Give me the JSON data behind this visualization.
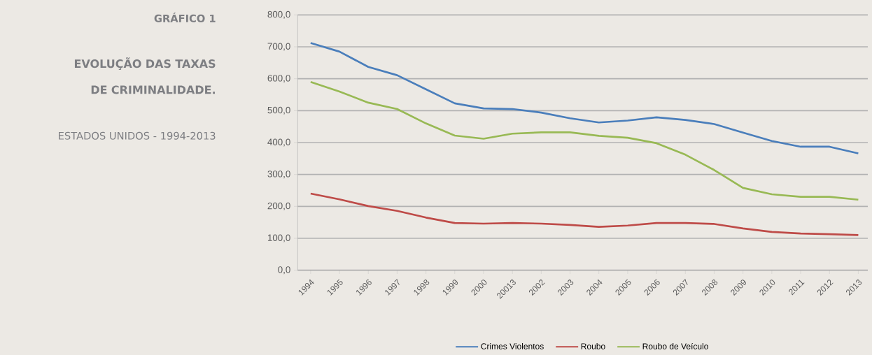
{
  "chart_data": {
    "type": "line",
    "annotations": [
      "GRÁFICO 1"
    ],
    "title": "EVOLUÇÃO DAS TAXAS DE CRIMINALIDADE.",
    "subtitle": "ESTADOS UNIDOS - 1994-2013",
    "categories": [
      "1994",
      "1995",
      "1996",
      "1997",
      "1998",
      "1999",
      "2000",
      "20013",
      "2002",
      "2003",
      "2004",
      "2005",
      "2006",
      "2007",
      "2008",
      "2009",
      "2010",
      "2011",
      "2012",
      "2013"
    ],
    "series": [
      {
        "name": "Crimes Violentos",
        "color": "#4a7ebb",
        "values": [
          712,
          685,
          637,
          611,
          567,
          523,
          507,
          505,
          494,
          476,
          463,
          469,
          479,
          471,
          458,
          431,
          405,
          387,
          387,
          366
        ]
      },
      {
        "name": "Roubo",
        "color": "#be4b48",
        "values": [
          240,
          222,
          201,
          186,
          165,
          148,
          146,
          148,
          146,
          142,
          136,
          140,
          148,
          148,
          145,
          131,
          120,
          115,
          113,
          110
        ]
      },
      {
        "name": "Roubo de Veículo",
        "color": "#98b954",
        "values": [
          590,
          560,
          525,
          505,
          460,
          422,
          412,
          428,
          432,
          432,
          421,
          415,
          398,
          362,
          314,
          258,
          238,
          230,
          230,
          221
        ]
      }
    ],
    "ylim": [
      0,
      800
    ],
    "yticks": [
      {
        "value": 0,
        "label": "0,0"
      },
      {
        "value": 100,
        "label": "100,0"
      },
      {
        "value": 200,
        "label": "200,0"
      },
      {
        "value": 300,
        "label": "300,0"
      },
      {
        "value": 400,
        "label": "400,0"
      },
      {
        "value": 500,
        "label": "500,0"
      },
      {
        "value": 600,
        "label": "600,0"
      },
      {
        "value": 700,
        "label": "700,0"
      },
      {
        "value": 800,
        "label": "800,0"
      }
    ],
    "grid": "y",
    "legend": "bottom"
  }
}
